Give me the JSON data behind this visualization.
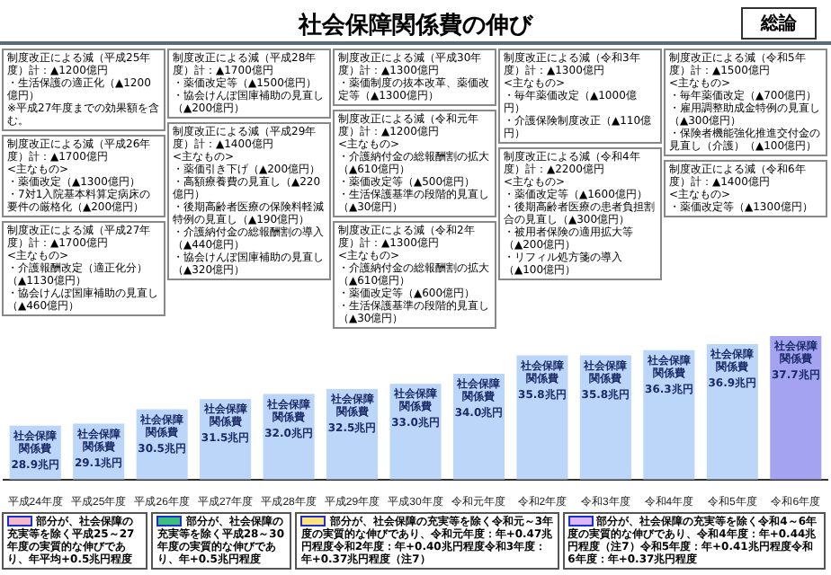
{
  "chart_data": {
    "type": "bar",
    "title": "社会保障関係費の伸び",
    "subtitle": "総論",
    "categories": [
      "平成24年度",
      "平成25年度",
      "平成26年度",
      "平成27年度",
      "平成28年度",
      "平成29年度",
      "平成30年度",
      "令和元年度",
      "令和2年度",
      "令和3年度",
      "令和4年度",
      "令和5年度",
      "令和6年度"
    ],
    "series": [
      {
        "name": "社会保障関係費",
        "colors": [
          "#bcd6fa",
          "#bcd6fa",
          "#bcd6fa",
          "#bcd6fa",
          "#bcd6fa",
          "#bcd6fa",
          "#bcd6fa",
          "#bcd6fa",
          "#bcd6fa",
          "#bcd6fa",
          "#bcd6fa",
          "#bcd6fa",
          "#a3a3f2"
        ],
        "values": [
          28.9,
          29.1,
          30.5,
          31.5,
          32.0,
          32.5,
          33.0,
          34.0,
          35.8,
          35.8,
          36.3,
          36.9,
          37.7
        ],
        "value_labels": [
          "28.9兆円",
          "29.1兆円",
          "30.5兆円",
          "31.5兆円",
          "32.0兆円",
          "32.5兆円",
          "33.0兆円",
          "34.0兆円",
          "35.8兆円",
          "35.8兆円",
          "36.3兆円",
          "36.9兆円",
          "37.7兆円"
        ]
      }
    ],
    "legend": false,
    "annotations": [
      "制度改正による減（平成25年度）計：▲1200億円・生活保護の適正化（▲1200億円）※平成27年度までの効果額を含む。",
      "制度改正による減（平成26年度）計：▲1700億円<主なもの>・薬価改定（▲1300億円）・7対1入院基本料算定病床の要件の厳格化（▲200億円）",
      "制度改正による減（平成27年度）計：▲1700億円<主なもの>・介護報酬改定（適正化分）（▲1130億円）・協会けんぽ国庫補助の見直し（▲460億円）",
      "制度改正による減（平成28年度）計：▲1700億円・薬価改定等（▲1500億円）・協会けんぽ国庫補助の見直し（▲200億円）",
      "制度改正による減（平成29年度）計：▲1400億円<主なもの>・薬価引き下げ（▲200億円）・高額療養費の見直し（▲220億円）・後期高齢者医療の保険料軽減特例の見直し（▲190億円）・介護納付金の総報酬割の導入（▲440億円）・協会けんぽ国庫補助の見直し（▲320億円）",
      "制度改正による減（平成30年度）計：▲1300億円・薬価制度の抜本改革、薬価改定等（▲1300億円）",
      "制度改正による減（令和元年度）計：▲1200億円<主なもの>・介護納付金の総報酬割の拡大（▲610億円）・薬価改定等（▲500億円）・生活保護基準の段階的見直し（▲30億円）",
      "制度改正による減（令和2年度）計：▲1300億円<主なもの>・介護納付金の総報酬割の拡大（▲610億円）・薬価改定等（▲600億円）・生活保護基準の段階的見直し（▲30億円）",
      "制度改正による減（令和3年度）計：▲1300億円<主なもの>・毎年薬価改定（▲1000億円）・介護保険制度改正（▲110億円）",
      "制度改正による減（令和4年度）計：▲2200億円<主なもの>・薬価改定等（▲1600億円）・後期高齢者医療の患者負担割合の見直し（▲300億円）・被用者保険の適用拡大等（▲200億円）・リフィル処方箋の導入（▲100億円）",
      "制度改正による減（令和5年度）計：▲1500億円<主なもの>・毎年薬価改定（▲700億円）・雇用調整助成金特例の見直し（▲300億円）・保険者機能強化推進交付金の見直し（介護）（▲100億円）",
      "制度改正による減（令和6年度）計：▲1400億円<主なもの>・薬価改定等（▲1300億円）",
      "部分が、社会保障の充実等を除く平成25～27年度の実質的な伸びであり、年平均+0.5兆円程度",
      "部分が、社会保障の充実等を除く平成28～30年度の実質的な伸びであり、年+0.5兆円程度",
      "部分が、社会保障の充実等を除く令和元～3年度の実質的な伸びであり、令和元年度：年+0.47兆円程度令和2年度：年+0.40兆円程度令和3年度：年+0.37兆円程度（注7）",
      "部分が、社会保障の充実等を除く令和4～6年度の実質的な伸びであり、令和4年度：年+0.44兆円程度（注7）令和5年度：年+0.41兆円程度令和6年度：年+0.37兆円程度"
    ]
  }
}
